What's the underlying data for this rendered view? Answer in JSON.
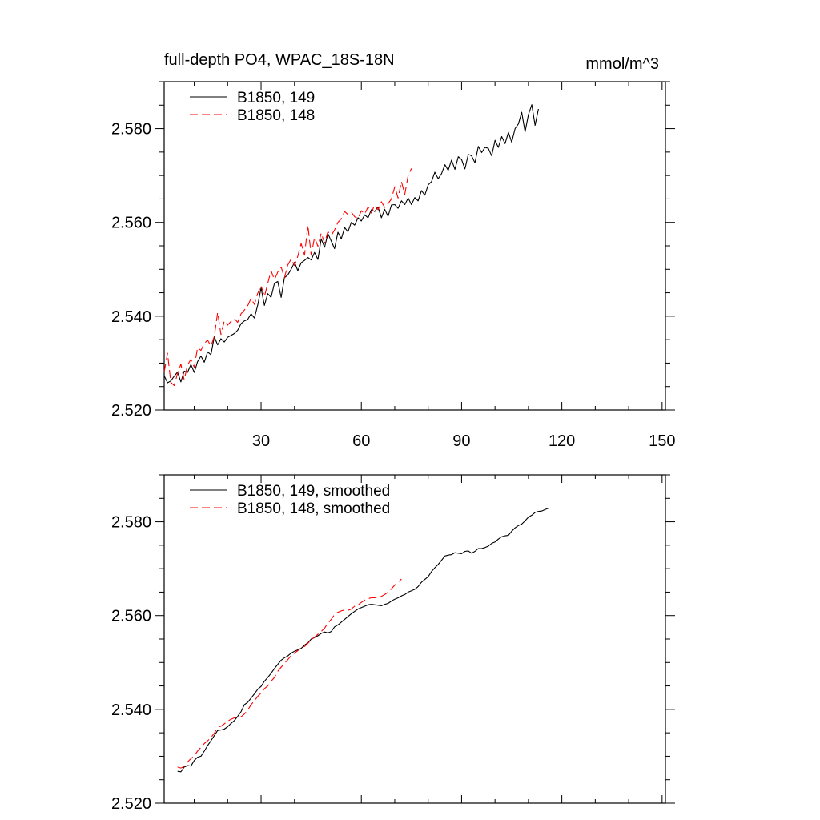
{
  "title_left": "full-depth PO4, WPAC_18S-18N",
  "title_right": "mmol/m^3",
  "colors": {
    "run149": "#000000",
    "run148": "#ff0000"
  },
  "chart_data": [
    {
      "type": "line",
      "xlim": [
        1,
        151
      ],
      "ylim": [
        2.52,
        2.59
      ],
      "x_ticks": [
        30,
        60,
        90,
        120,
        150
      ],
      "x_tick_labels": [
        "30",
        "60",
        "90",
        "120",
        "150"
      ],
      "y_ticks": [
        2.52,
        2.54,
        2.56,
        2.58
      ],
      "y_tick_labels": [
        "2.520",
        "2.540",
        "2.560",
        "2.580"
      ],
      "legend": "top-left",
      "series": [
        {
          "name": "B1850, 149",
          "style": "solid",
          "x_start": 1,
          "values": [
            2.5273,
            2.5258,
            2.5262,
            2.5272,
            2.5281,
            2.526,
            2.5283,
            2.528,
            2.5297,
            2.528,
            2.5303,
            2.5315,
            2.5302,
            2.5324,
            2.5318,
            2.5356,
            2.5339,
            2.5352,
            2.5345,
            2.5355,
            2.5359,
            2.5363,
            2.537,
            2.5384,
            2.539,
            2.5393,
            2.5405,
            2.5396,
            2.5424,
            2.546,
            2.5423,
            2.5448,
            2.544,
            2.547,
            2.5474,
            2.544,
            2.5482,
            2.5488,
            2.55,
            2.5515,
            2.5497,
            2.5514,
            2.5519,
            2.5525,
            2.552,
            2.5536,
            2.5521,
            2.5565,
            2.5547,
            2.5576,
            2.556,
            2.5544,
            2.5579,
            2.5565,
            2.5589,
            2.558,
            2.56,
            2.5594,
            2.561,
            2.5603,
            2.5616,
            2.561,
            2.5627,
            2.5623,
            2.5633,
            2.561,
            2.5628,
            2.5613,
            2.5637,
            2.5638,
            2.563,
            2.5646,
            2.5638,
            2.5652,
            2.5638,
            2.5653,
            2.5646,
            2.5668,
            2.5658,
            2.568,
            2.5687,
            2.5707,
            2.5693,
            2.5704,
            2.5723,
            2.5711,
            2.5733,
            2.5713,
            2.574,
            2.5734,
            2.5714,
            2.5745,
            2.5742,
            2.5727,
            2.5762,
            2.5749,
            2.576,
            2.5758,
            2.5742,
            2.5775,
            2.576,
            2.5783,
            2.5768,
            2.5792,
            2.5771,
            2.58,
            2.581,
            2.5835,
            2.5793,
            2.583,
            2.5851,
            2.5807,
            2.5842
          ]
        },
        {
          "name": "B1850, 148",
          "style": "dashed",
          "x_start": 1,
          "values": [
            2.5281,
            2.5321,
            2.5259,
            2.5252,
            2.5278,
            2.5298,
            2.5264,
            2.5296,
            2.5308,
            2.5291,
            2.5333,
            2.5327,
            2.5342,
            2.5349,
            2.5336,
            2.5357,
            2.5408,
            2.5361,
            2.539,
            2.5381,
            2.5389,
            2.5395,
            2.5387,
            2.5405,
            2.5413,
            2.5422,
            2.5438,
            2.5425,
            2.5449,
            2.5465,
            2.5442,
            2.547,
            2.5497,
            2.5478,
            2.5494,
            2.5505,
            2.5482,
            2.5509,
            2.5522,
            2.5508,
            2.5528,
            2.5555,
            2.553,
            2.5594,
            2.553,
            2.5568,
            2.5549,
            2.5577,
            2.5556,
            2.558,
            2.5572,
            2.5584,
            2.56,
            2.5608,
            2.5623,
            2.5617,
            2.5622,
            2.5612,
            2.5608,
            2.5625,
            2.5618,
            2.5633,
            2.562,
            2.5638,
            2.5627,
            2.5644,
            2.5632,
            2.564,
            2.565,
            2.5676,
            2.5652,
            2.5687,
            2.566,
            2.57,
            2.5715
          ]
        }
      ]
    },
    {
      "type": "line",
      "xlim": [
        1,
        151
      ],
      "ylim": [
        2.52,
        2.59
      ],
      "x_ticks": [
        30,
        60,
        90,
        120,
        150
      ],
      "x_tick_labels": [],
      "y_ticks": [
        2.52,
        2.54,
        2.56,
        2.58
      ],
      "y_tick_labels": [
        "2.520",
        "2.540",
        "2.560",
        "2.580"
      ],
      "legend": "top-left",
      "series": [
        {
          "name": "B1850, 149, smoothed",
          "style": "solid",
          "x_start": 5,
          "values": [
            2.5268,
            2.5267,
            2.5277,
            2.528,
            2.5279,
            2.5291,
            2.5298,
            2.53,
            2.5311,
            2.5323,
            2.5333,
            2.5344,
            2.5355,
            2.5356,
            2.5358,
            2.5363,
            2.537,
            2.5376,
            2.5385,
            2.5395,
            2.541,
            2.5415,
            2.5424,
            2.5433,
            2.5443,
            2.5449,
            2.546,
            2.5468,
            2.5477,
            2.5487,
            2.5496,
            2.5505,
            2.551,
            2.5514,
            2.552,
            2.5524,
            2.5527,
            2.553,
            2.5537,
            2.5542,
            2.555,
            2.5553,
            2.5557,
            2.5562,
            2.5565,
            2.5563,
            2.5566,
            2.5576,
            2.558,
            2.5586,
            2.5592,
            2.5598,
            2.5604,
            2.5609,
            2.5614,
            2.5617,
            2.562,
            2.5623,
            2.5624,
            2.5623,
            2.5622,
            2.5621,
            2.5624,
            2.5626,
            2.5631,
            2.5635,
            2.5638,
            2.5642,
            2.5645,
            2.565,
            2.5653,
            2.5656,
            2.5662,
            2.5671,
            2.5677,
            2.5683,
            2.5694,
            2.5702,
            2.5709,
            2.5718,
            2.5727,
            2.5729,
            2.573,
            2.5734,
            2.5733,
            2.5732,
            2.5737,
            2.5738,
            2.5733,
            2.5737,
            2.5743,
            2.5743,
            2.5745,
            2.5748,
            2.5754,
            2.5757,
            2.5763,
            2.5768,
            2.577,
            2.5771,
            2.578,
            2.5787,
            2.5792,
            2.5795,
            2.5802,
            2.581,
            2.5814,
            2.582,
            2.5822,
            2.5823,
            2.5826,
            2.5829
          ]
        },
        {
          "name": "B1850, 148, smoothed",
          "style": "dashed",
          "x_start": 5,
          "values": [
            2.5277,
            2.5275,
            2.5278,
            2.5288,
            2.5295,
            2.5301,
            2.5311,
            2.5319,
            2.5327,
            2.5333,
            2.534,
            2.5349,
            2.5362,
            2.5364,
            2.5369,
            2.5375,
            2.5379,
            2.5382,
            2.5382,
            2.5384,
            2.539,
            2.5398,
            2.541,
            2.5418,
            2.5428,
            2.5435,
            2.5444,
            2.545,
            2.546,
            2.5468,
            2.5481,
            2.549,
            2.5498,
            2.5506,
            2.5515,
            2.552,
            2.5525,
            2.5532,
            2.5534,
            2.5541,
            2.5548,
            2.5554,
            2.556,
            2.5566,
            2.5573,
            2.5584,
            2.5592,
            2.5602,
            2.5607,
            2.561,
            2.5612,
            2.5611,
            2.5614,
            2.562,
            2.5623,
            2.5628,
            2.5633,
            2.5636,
            2.5638,
            2.5638,
            2.564,
            2.5641,
            2.5645,
            2.565,
            2.5657,
            2.5665,
            2.567,
            2.5678
          ]
        }
      ]
    }
  ]
}
